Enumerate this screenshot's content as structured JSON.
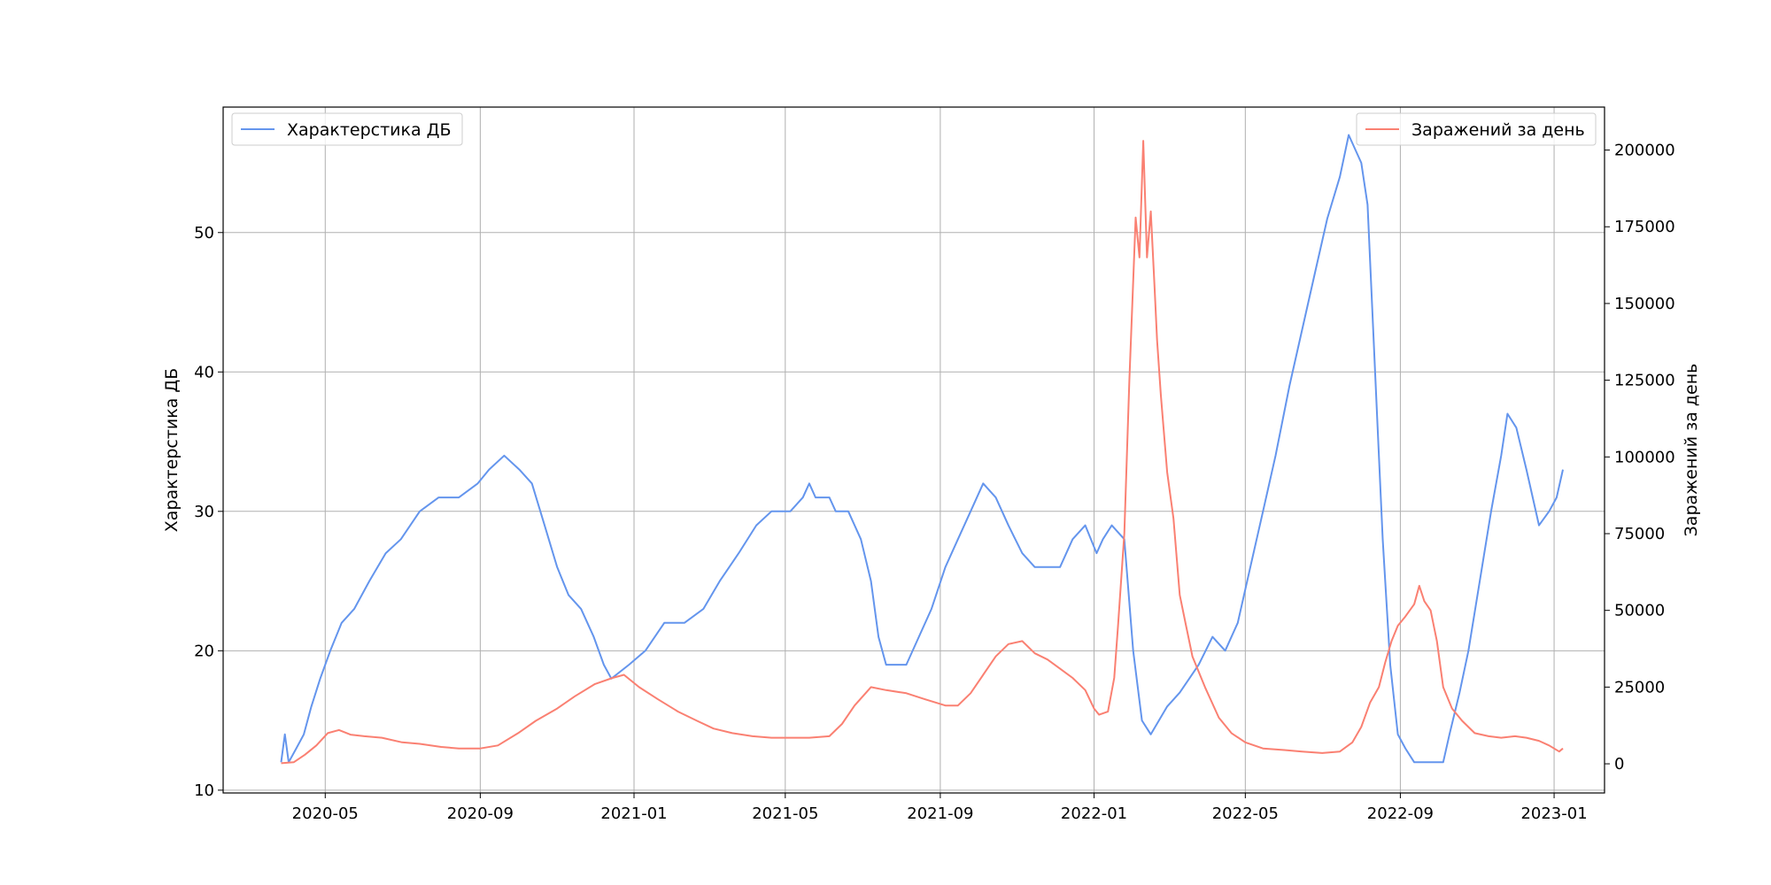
{
  "chart_data": {
    "type": "line",
    "title": "",
    "xlabel": "",
    "x_range": [
      "2020-02-10",
      "2023-02-10"
    ],
    "x_ticks": [
      "2020-05",
      "2020-09",
      "2021-01",
      "2021-05",
      "2021-09",
      "2022-01",
      "2022-05",
      "2022-09",
      "2023-01"
    ],
    "grid": true,
    "y_left": {
      "label": "Характерстика ДБ",
      "range": [
        9.8,
        59.0
      ],
      "ticks": [
        10,
        20,
        30,
        40,
        50
      ]
    },
    "y_right": {
      "label": "Заражений за день",
      "range": [
        -9500,
        214000
      ],
      "ticks": [
        "0",
        "25000",
        "50000",
        "75000",
        "100000",
        "125000",
        "150000",
        "175000",
        "200000"
      ],
      "tick_values": [
        0,
        25000,
        50000,
        75000,
        100000,
        125000,
        150000,
        175000,
        200000
      ]
    },
    "series": [
      {
        "name": "Характерстика ДБ",
        "axis": "left",
        "color": "#6495ED",
        "legend_position": "upper-left",
        "points": [
          [
            "2020-03-27",
            12
          ],
          [
            "2020-03-30",
            14
          ],
          [
            "2020-04-02",
            12
          ],
          [
            "2020-04-08",
            13
          ],
          [
            "2020-04-14",
            14
          ],
          [
            "2020-04-20",
            16
          ],
          [
            "2020-04-27",
            18
          ],
          [
            "2020-05-05",
            20
          ],
          [
            "2020-05-14",
            22
          ],
          [
            "2020-05-24",
            23
          ],
          [
            "2020-06-05",
            25
          ],
          [
            "2020-06-18",
            27
          ],
          [
            "2020-06-30",
            28
          ],
          [
            "2020-07-15",
            30
          ],
          [
            "2020-07-30",
            31
          ],
          [
            "2020-08-15",
            31
          ],
          [
            "2020-08-30",
            32
          ],
          [
            "2020-09-08",
            33
          ],
          [
            "2020-09-20",
            34
          ],
          [
            "2020-10-02",
            33
          ],
          [
            "2020-10-12",
            32
          ],
          [
            "2020-10-22",
            29
          ],
          [
            "2020-11-01",
            26
          ],
          [
            "2020-11-10",
            24
          ],
          [
            "2020-11-20",
            23
          ],
          [
            "2020-11-30",
            21
          ],
          [
            "2020-12-08",
            19
          ],
          [
            "2020-12-14",
            18
          ],
          [
            "2020-12-28",
            19
          ],
          [
            "2021-01-10",
            20
          ],
          [
            "2021-01-25",
            22
          ],
          [
            "2021-02-10",
            22
          ],
          [
            "2021-02-25",
            23
          ],
          [
            "2021-03-10",
            25
          ],
          [
            "2021-03-25",
            27
          ],
          [
            "2021-04-08",
            29
          ],
          [
            "2021-04-20",
            30
          ],
          [
            "2021-05-05",
            30
          ],
          [
            "2021-05-15",
            31
          ],
          [
            "2021-05-20",
            32
          ],
          [
            "2021-05-25",
            31
          ],
          [
            "2021-06-05",
            31
          ],
          [
            "2021-06-10",
            30
          ],
          [
            "2021-06-20",
            30
          ],
          [
            "2021-06-30",
            28
          ],
          [
            "2021-07-08",
            25
          ],
          [
            "2021-07-14",
            21
          ],
          [
            "2021-07-20",
            19
          ],
          [
            "2021-08-05",
            19
          ],
          [
            "2021-08-15",
            21
          ],
          [
            "2021-08-25",
            23
          ],
          [
            "2021-09-05",
            26
          ],
          [
            "2021-09-15",
            28
          ],
          [
            "2021-09-25",
            30
          ],
          [
            "2021-10-05",
            32
          ],
          [
            "2021-10-15",
            31
          ],
          [
            "2021-10-25",
            29
          ],
          [
            "2021-11-05",
            27
          ],
          [
            "2021-11-15",
            26
          ],
          [
            "2021-11-25",
            26
          ],
          [
            "2021-12-05",
            26
          ],
          [
            "2021-12-15",
            28
          ],
          [
            "2021-12-25",
            29
          ],
          [
            "2022-01-03",
            27
          ],
          [
            "2022-01-08",
            28
          ],
          [
            "2022-01-15",
            29
          ],
          [
            "2022-01-25",
            28
          ],
          [
            "2022-02-01",
            20
          ],
          [
            "2022-02-08",
            15
          ],
          [
            "2022-02-15",
            14
          ],
          [
            "2022-02-28",
            16
          ],
          [
            "2022-03-10",
            17
          ],
          [
            "2022-03-25",
            19
          ],
          [
            "2022-04-05",
            21
          ],
          [
            "2022-04-15",
            20
          ],
          [
            "2022-04-25",
            22
          ],
          [
            "2022-05-05",
            26
          ],
          [
            "2022-05-15",
            30
          ],
          [
            "2022-05-25",
            34
          ],
          [
            "2022-06-05",
            39
          ],
          [
            "2022-06-15",
            43
          ],
          [
            "2022-06-25",
            47
          ],
          [
            "2022-07-05",
            51
          ],
          [
            "2022-07-15",
            54
          ],
          [
            "2022-07-22",
            57
          ],
          [
            "2022-08-01",
            55
          ],
          [
            "2022-08-06",
            52
          ],
          [
            "2022-08-12",
            40
          ],
          [
            "2022-08-18",
            28
          ],
          [
            "2022-08-24",
            19
          ],
          [
            "2022-08-30",
            14
          ],
          [
            "2022-09-05",
            13
          ],
          [
            "2022-09-12",
            12
          ],
          [
            "2022-09-20",
            12
          ],
          [
            "2022-09-30",
            12
          ],
          [
            "2022-10-05",
            12
          ],
          [
            "2022-10-10",
            14
          ],
          [
            "2022-10-18",
            17
          ],
          [
            "2022-10-25",
            20
          ],
          [
            "2022-11-03",
            25
          ],
          [
            "2022-11-12",
            30
          ],
          [
            "2022-11-20",
            34
          ],
          [
            "2022-11-25",
            37
          ],
          [
            "2022-12-02",
            36
          ],
          [
            "2022-12-10",
            33
          ],
          [
            "2022-12-15",
            31
          ],
          [
            "2022-12-20",
            29
          ],
          [
            "2022-12-28",
            30
          ],
          [
            "2023-01-03",
            31
          ],
          [
            "2023-01-08",
            33
          ]
        ]
      },
      {
        "name": "Заражений за день",
        "axis": "right",
        "color": "#FA8072",
        "legend_position": "upper-right",
        "points": [
          [
            "2020-03-27",
            200
          ],
          [
            "2020-04-06",
            500
          ],
          [
            "2020-04-15",
            3000
          ],
          [
            "2020-04-24",
            6000
          ],
          [
            "2020-05-03",
            10000
          ],
          [
            "2020-05-12",
            11000
          ],
          [
            "2020-05-21",
            9500
          ],
          [
            "2020-06-01",
            9000
          ],
          [
            "2020-06-15",
            8500
          ],
          [
            "2020-07-01",
            7000
          ],
          [
            "2020-07-15",
            6500
          ],
          [
            "2020-08-01",
            5500
          ],
          [
            "2020-08-15",
            5000
          ],
          [
            "2020-09-01",
            5000
          ],
          [
            "2020-09-15",
            6000
          ],
          [
            "2020-10-01",
            10000
          ],
          [
            "2020-10-15",
            14000
          ],
          [
            "2020-11-01",
            18000
          ],
          [
            "2020-11-15",
            22000
          ],
          [
            "2020-12-01",
            26000
          ],
          [
            "2020-12-15",
            28000
          ],
          [
            "2020-12-24",
            29000
          ],
          [
            "2021-01-05",
            25000
          ],
          [
            "2021-01-20",
            21000
          ],
          [
            "2021-02-05",
            17000
          ],
          [
            "2021-02-20",
            14000
          ],
          [
            "2021-03-05",
            11500
          ],
          [
            "2021-03-20",
            10000
          ],
          [
            "2021-04-05",
            9000
          ],
          [
            "2021-04-20",
            8500
          ],
          [
            "2021-05-05",
            8500
          ],
          [
            "2021-05-20",
            8500
          ],
          [
            "2021-06-05",
            9000
          ],
          [
            "2021-06-15",
            13000
          ],
          [
            "2021-06-25",
            19000
          ],
          [
            "2021-07-08",
            25000
          ],
          [
            "2021-07-20",
            24000
          ],
          [
            "2021-08-05",
            23000
          ],
          [
            "2021-08-20",
            21000
          ],
          [
            "2021-09-05",
            19000
          ],
          [
            "2021-09-15",
            19000
          ],
          [
            "2021-09-25",
            23000
          ],
          [
            "2021-10-05",
            29000
          ],
          [
            "2021-10-15",
            35000
          ],
          [
            "2021-10-25",
            39000
          ],
          [
            "2021-11-05",
            40000
          ],
          [
            "2021-11-15",
            36000
          ],
          [
            "2021-11-25",
            34000
          ],
          [
            "2021-12-05",
            31000
          ],
          [
            "2021-12-15",
            28000
          ],
          [
            "2021-12-25",
            24000
          ],
          [
            "2022-01-01",
            18000
          ],
          [
            "2022-01-05",
            16000
          ],
          [
            "2022-01-12",
            17000
          ],
          [
            "2022-01-17",
            28000
          ],
          [
            "2022-01-20",
            45000
          ],
          [
            "2022-01-25",
            75000
          ],
          [
            "2022-01-29",
            125000
          ],
          [
            "2022-02-03",
            178000
          ],
          [
            "2022-02-06",
            165000
          ],
          [
            "2022-02-09",
            203000
          ],
          [
            "2022-02-12",
            165000
          ],
          [
            "2022-02-15",
            180000
          ],
          [
            "2022-02-18",
            155000
          ],
          [
            "2022-02-20",
            138000
          ],
          [
            "2022-02-23",
            120000
          ],
          [
            "2022-02-28",
            95000
          ],
          [
            "2022-03-05",
            80000
          ],
          [
            "2022-03-10",
            55000
          ],
          [
            "2022-03-15",
            45000
          ],
          [
            "2022-03-20",
            35000
          ],
          [
            "2022-03-30",
            25000
          ],
          [
            "2022-04-10",
            15000
          ],
          [
            "2022-04-20",
            10000
          ],
          [
            "2022-05-01",
            7000
          ],
          [
            "2022-05-15",
            5000
          ],
          [
            "2022-06-01",
            4500
          ],
          [
            "2022-06-15",
            4000
          ],
          [
            "2022-07-01",
            3500
          ],
          [
            "2022-07-15",
            4000
          ],
          [
            "2022-07-25",
            7000
          ],
          [
            "2022-08-01",
            12000
          ],
          [
            "2022-08-08",
            20000
          ],
          [
            "2022-08-15",
            25000
          ],
          [
            "2022-08-20",
            33000
          ],
          [
            "2022-08-25",
            40000
          ],
          [
            "2022-08-30",
            45000
          ],
          [
            "2022-09-05",
            48000
          ],
          [
            "2022-09-12",
            52000
          ],
          [
            "2022-09-16",
            58000
          ],
          [
            "2022-09-20",
            53000
          ],
          [
            "2022-09-25",
            50000
          ],
          [
            "2022-09-30",
            40000
          ],
          [
            "2022-10-05",
            25000
          ],
          [
            "2022-10-12",
            18000
          ],
          [
            "2022-10-20",
            14000
          ],
          [
            "2022-10-30",
            10000
          ],
          [
            "2022-11-10",
            9000
          ],
          [
            "2022-11-20",
            8500
          ],
          [
            "2022-12-01",
            9000
          ],
          [
            "2022-12-10",
            8500
          ],
          [
            "2022-12-20",
            7500
          ],
          [
            "2022-12-28",
            6000
          ],
          [
            "2023-01-05",
            4000
          ],
          [
            "2023-01-08",
            5000
          ]
        ]
      }
    ]
  }
}
